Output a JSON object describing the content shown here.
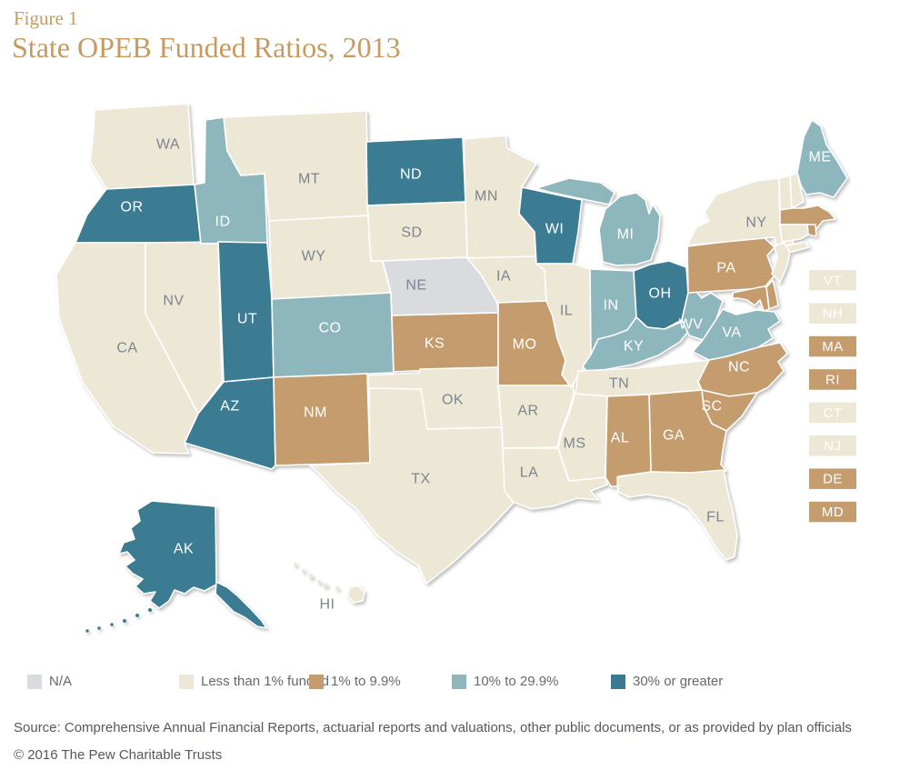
{
  "chart_data": {
    "type": "heatmap",
    "subtype": "us-state-choropleth",
    "figure_label": "Figure 1",
    "title": "State OPEB Funded Ratios, 2013",
    "legend": [
      {
        "key": "na",
        "label": "N/A",
        "color": "#d9dbde"
      },
      {
        "key": "lt1",
        "label": "Less than 1% funded",
        "color": "#ede7d6"
      },
      {
        "key": "p1",
        "label": "1% to 9.9%",
        "color": "#c59c6d"
      },
      {
        "key": "p10",
        "label": "10% to 29.9%",
        "color": "#8eb7bd"
      },
      {
        "key": "p30",
        "label": "30% or greater",
        "color": "#3b7b92"
      }
    ],
    "states": {
      "WA": "lt1",
      "OR": "p30",
      "CA": "lt1",
      "NV": "lt1",
      "ID": "p10",
      "MT": "lt1",
      "WY": "lt1",
      "UT": "p30",
      "CO": "p10",
      "AZ": "p30",
      "NM": "p1",
      "ND": "p30",
      "SD": "lt1",
      "NE": "na",
      "KS": "p1",
      "OK": "lt1",
      "TX": "lt1",
      "MN": "lt1",
      "IA": "lt1",
      "MO": "p1",
      "AR": "lt1",
      "LA": "lt1",
      "MS": "lt1",
      "WI": "p30",
      "IL": "lt1",
      "MI": "p10",
      "IN": "p10",
      "OH": "p30",
      "KY": "p10",
      "TN": "lt1",
      "WV": "p10",
      "VA": "p10",
      "NC": "p1",
      "SC": "p1",
      "GA": "p1",
      "AL": "p1",
      "FL": "lt1",
      "PA": "p1",
      "NY": "lt1",
      "ME": "p10",
      "VT": "lt1",
      "NH": "lt1",
      "MA": "p1",
      "RI": "p1",
      "CT": "lt1",
      "NJ": "lt1",
      "DE": "p1",
      "MD": "p1",
      "AK": "p30",
      "HI": "lt1"
    },
    "inset_states": [
      "VT",
      "NH",
      "MA",
      "RI",
      "CT",
      "NJ",
      "DE",
      "MD"
    ]
  },
  "footer": {
    "source": "Source: Comprehensive Annual Financial Reports, actuarial reports and valuations, other public documents, or as provided by plan officials",
    "copyright": "© 2016 The Pew Charitable Trusts"
  },
  "colors": {
    "title_text": "#c59b62",
    "state_label_on_light": "#7d8490",
    "state_label_on_color": "#ffffff",
    "legend_text": "#65686d",
    "footer_text": "#55585c"
  }
}
